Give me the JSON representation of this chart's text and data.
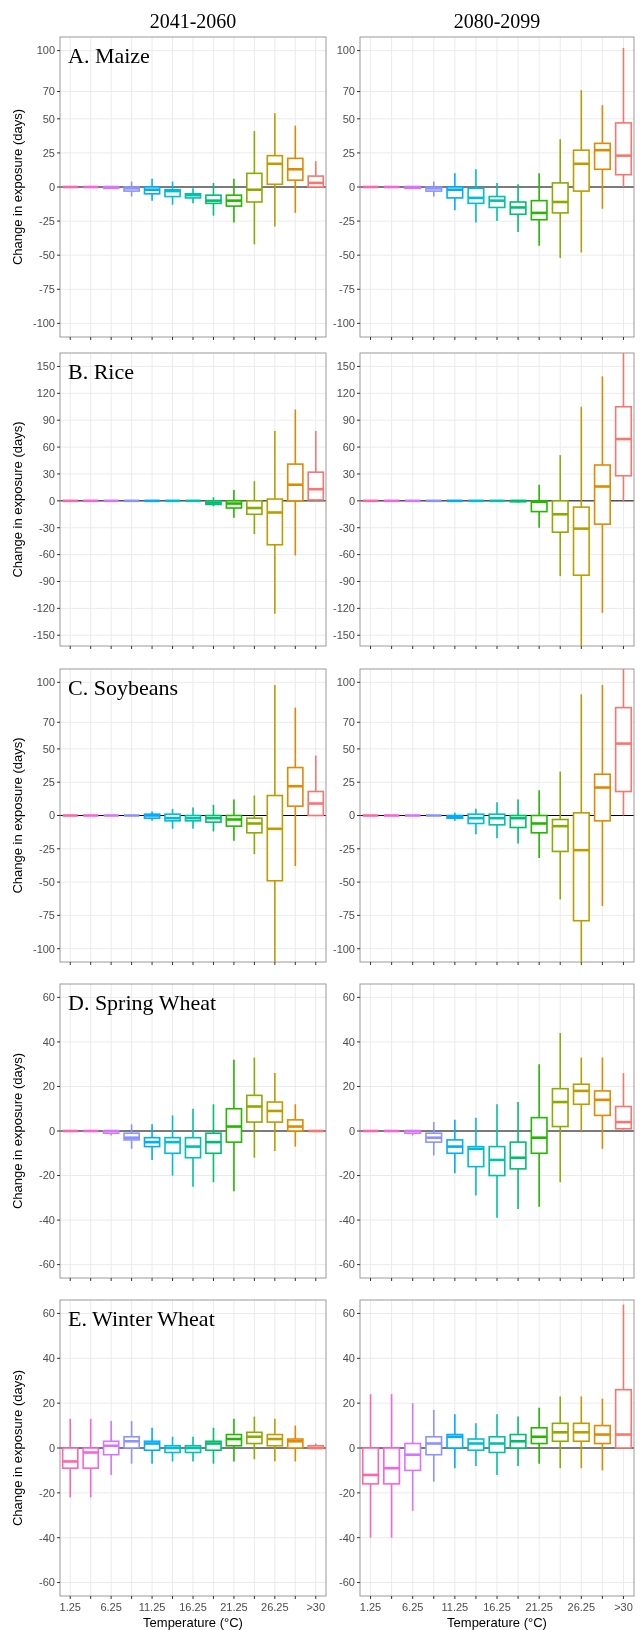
{
  "chart_data": [
    {
      "type": "box",
      "title": "2041-2060",
      "annotations": [
        "A. Maize"
      ],
      "ylabel": "Change in exposure (days)",
      "categories": [
        null,
        null,
        null,
        null,
        null,
        null,
        null,
        null,
        null,
        null,
        null,
        null,
        null
      ],
      "colors": [
        "#ff65ac",
        "#f962dd",
        "#d575fe",
        "#8b93ff",
        "#00acfc",
        "#00bbda",
        "#00c1ab",
        "#00be70",
        "#24b700",
        "#8cab00",
        "#be9c00",
        "#e18a00",
        "#f8766d"
      ],
      "ylim": [
        -110,
        110
      ],
      "yticks": [
        -100,
        -75,
        -50,
        -25,
        0,
        25,
        50,
        70,
        100
      ],
      "grid": true,
      "tick_labels": "y",
      "ref_lines": [
        {
          "axis": "y",
          "value": 0,
          "color": "#000000"
        }
      ],
      "boxes": [
        {
          "low": 0,
          "q1": 0,
          "median": 0,
          "q3": 0,
          "high": 0
        },
        {
          "low": 0,
          "q1": 0,
          "median": 0,
          "q3": 0,
          "high": 0
        },
        {
          "low": -1,
          "q1": -1,
          "median": 0,
          "q3": 0,
          "high": 0
        },
        {
          "low": -7,
          "q1": -3,
          "median": -1,
          "q3": 0,
          "high": 4
        },
        {
          "low": -10,
          "q1": -5,
          "median": -2,
          "q3": 0,
          "high": 6
        },
        {
          "low": -13,
          "q1": -7,
          "median": -3,
          "q3": -2,
          "high": 4
        },
        {
          "low": -12,
          "q1": -8,
          "median": -6,
          "q3": -5,
          "high": -1
        },
        {
          "low": -21,
          "q1": -12,
          "median": -10,
          "q3": -6,
          "high": 3
        },
        {
          "low": -26,
          "q1": -14,
          "median": -10,
          "q3": -6,
          "high": 6
        },
        {
          "low": -42,
          "q1": -11,
          "median": -2,
          "q3": 10,
          "high": 41
        },
        {
          "low": -29,
          "q1": 2,
          "median": 17,
          "q3": 23,
          "high": 54
        },
        {
          "low": -19,
          "q1": 5,
          "median": 13,
          "q3": 21,
          "high": 45
        },
        {
          "low": 0,
          "q1": 0,
          "median": 3,
          "q3": 8,
          "high": 19
        }
      ]
    },
    {
      "type": "box",
      "title": "2080-2099",
      "categories": [
        null,
        null,
        null,
        null,
        null,
        null,
        null,
        null,
        null,
        null,
        null,
        null,
        null
      ],
      "colors": [
        "#ff65ac",
        "#f962dd",
        "#d575fe",
        "#8b93ff",
        "#00acfc",
        "#00bbda",
        "#00c1ab",
        "#00be70",
        "#24b700",
        "#8cab00",
        "#be9c00",
        "#e18a00",
        "#f8766d"
      ],
      "ylim": [
        -110,
        110
      ],
      "yticks": [
        -100,
        -75,
        -50,
        -25,
        0,
        25,
        50,
        70,
        100
      ],
      "grid": true,
      "tick_labels": "y",
      "ref_lines": [
        {
          "axis": "y",
          "value": 0,
          "color": "#000000"
        }
      ],
      "boxes": [
        {
          "low": 0,
          "q1": 0,
          "median": 0,
          "q3": 0,
          "high": 0
        },
        {
          "low": 0,
          "q1": 0,
          "median": 0,
          "q3": 0,
          "high": 0
        },
        {
          "low": -1,
          "q1": -1,
          "median": 0,
          "q3": 0,
          "high": 0
        },
        {
          "low": -7,
          "q1": -3,
          "median": -1,
          "q3": 0,
          "high": 4
        },
        {
          "low": -17,
          "q1": -8,
          "median": -2,
          "q3": 0,
          "high": 10
        },
        {
          "low": -26,
          "q1": -12,
          "median": -8,
          "q3": -1,
          "high": 13
        },
        {
          "low": -25,
          "q1": -15,
          "median": -10,
          "q3": -7,
          "high": 3
        },
        {
          "low": -33,
          "q1": -20,
          "median": -15,
          "q3": -11,
          "high": 2
        },
        {
          "low": -43,
          "q1": -24,
          "median": -19,
          "q3": -10,
          "high": 10
        },
        {
          "low": -52,
          "q1": -19,
          "median": -11,
          "q3": 3,
          "high": 35
        },
        {
          "low": -48,
          "q1": -3,
          "median": 17,
          "q3": 27,
          "high": 71
        },
        {
          "low": -16,
          "q1": 13,
          "median": 27,
          "q3": 32,
          "high": 60
        },
        {
          "low": 0,
          "q1": 9,
          "median": 23,
          "q3": 47,
          "high": 102
        }
      ]
    },
    {
      "type": "box",
      "annotations": [
        "B. Rice"
      ],
      "ylabel": "Change in exposure (days)",
      "categories": [
        null,
        null,
        null,
        null,
        null,
        null,
        null,
        null,
        null,
        null,
        null,
        null,
        null
      ],
      "colors": [
        "#ff65ac",
        "#f962dd",
        "#d575fe",
        "#8b93ff",
        "#00acfc",
        "#00bbda",
        "#00c1ab",
        "#00be70",
        "#24b700",
        "#8cab00",
        "#be9c00",
        "#e18a00",
        "#f8766d"
      ],
      "ylim": [
        -162,
        165
      ],
      "yticks": [
        -150,
        -120,
        -90,
        -60,
        -30,
        0,
        30,
        60,
        90,
        120,
        150
      ],
      "grid": true,
      "tick_labels": "y",
      "ref_lines": [
        {
          "axis": "y",
          "value": 0,
          "color": "#000000"
        }
      ],
      "boxes": [
        {
          "low": 0,
          "q1": 0,
          "median": 0,
          "q3": 0,
          "high": 0
        },
        {
          "low": 0,
          "q1": 0,
          "median": 0,
          "q3": 0,
          "high": 0
        },
        {
          "low": 0,
          "q1": 0,
          "median": 0,
          "q3": 0,
          "high": 0
        },
        {
          "low": 0,
          "q1": 0,
          "median": 0,
          "q3": 0,
          "high": 0
        },
        {
          "low": 0,
          "q1": 0,
          "median": 0,
          "q3": 0,
          "high": 0
        },
        {
          "low": 0,
          "q1": 0,
          "median": 0,
          "q3": 0,
          "high": 0
        },
        {
          "low": 0,
          "q1": 0,
          "median": 0,
          "q3": 0,
          "high": 0
        },
        {
          "low": -6,
          "q1": -4,
          "median": -2,
          "q3": 0,
          "high": 4
        },
        {
          "low": -19,
          "q1": -8,
          "median": -3,
          "q3": 0,
          "high": 12
        },
        {
          "low": -37,
          "q1": -15,
          "median": -8,
          "q3": 0,
          "high": 22
        },
        {
          "low": -126,
          "q1": -49,
          "median": -13,
          "q3": 2,
          "high": 78
        },
        {
          "low": -61,
          "q1": 0,
          "median": 18,
          "q3": 41,
          "high": 102
        },
        {
          "low": 0,
          "q1": 1,
          "median": 13,
          "q3": 32,
          "high": 78
        }
      ]
    },
    {
      "type": "box",
      "categories": [
        null,
        null,
        null,
        null,
        null,
        null,
        null,
        null,
        null,
        null,
        null,
        null,
        null
      ],
      "colors": [
        "#ff65ac",
        "#f962dd",
        "#d575fe",
        "#8b93ff",
        "#00acfc",
        "#00bbda",
        "#00c1ab",
        "#00be70",
        "#24b700",
        "#8cab00",
        "#be9c00",
        "#e18a00",
        "#f8766d"
      ],
      "ylim": [
        -162,
        165
      ],
      "yticks": [
        -150,
        -120,
        -90,
        -60,
        -30,
        0,
        30,
        60,
        90,
        120,
        150
      ],
      "grid": true,
      "tick_labels": "y",
      "ref_lines": [
        {
          "axis": "y",
          "value": 0,
          "color": "#000000"
        }
      ],
      "boxes": [
        {
          "low": 0,
          "q1": 0,
          "median": 0,
          "q3": 0,
          "high": 0
        },
        {
          "low": 0,
          "q1": 0,
          "median": 0,
          "q3": 0,
          "high": 0
        },
        {
          "low": 0,
          "q1": 0,
          "median": 0,
          "q3": 0,
          "high": 0
        },
        {
          "low": 0,
          "q1": 0,
          "median": 0,
          "q3": 0,
          "high": 0
        },
        {
          "low": 0,
          "q1": 0,
          "median": 0,
          "q3": 0,
          "high": 0
        },
        {
          "low": 0,
          "q1": 0,
          "median": 0,
          "q3": 0,
          "high": 0
        },
        {
          "low": 0,
          "q1": 0,
          "median": 0,
          "q3": 0,
          "high": 0
        },
        {
          "low": -2,
          "q1": -1,
          "median": 0,
          "q3": 0,
          "high": 1
        },
        {
          "low": -30,
          "q1": -12,
          "median": -1,
          "q3": 0,
          "high": 18
        },
        {
          "low": -84,
          "q1": -35,
          "median": -15,
          "q3": 0,
          "high": 51
        },
        {
          "low": -162,
          "q1": -83,
          "median": -31,
          "q3": -7,
          "high": 105
        },
        {
          "low": -125,
          "q1": -26,
          "median": 16,
          "q3": 40,
          "high": 139
        },
        {
          "low": 0,
          "q1": 28,
          "median": 69,
          "q3": 105,
          "high": 165
        }
      ]
    },
    {
      "type": "box",
      "annotations": [
        "C. Soybeans"
      ],
      "ylabel": "Change in exposure (days)",
      "categories": [
        null,
        null,
        null,
        null,
        null,
        null,
        null,
        null,
        null,
        null,
        null,
        null,
        null
      ],
      "colors": [
        "#ff65ac",
        "#f962dd",
        "#d575fe",
        "#8b93ff",
        "#00acfc",
        "#00bbda",
        "#00c1ab",
        "#00be70",
        "#24b700",
        "#8cab00",
        "#be9c00",
        "#e18a00",
        "#f8766d"
      ],
      "ylim": [
        -110,
        110
      ],
      "yticks": [
        -100,
        -75,
        -50,
        -25,
        0,
        25,
        50,
        70,
        100
      ],
      "grid": true,
      "tick_labels": "y",
      "ref_lines": [
        {
          "axis": "y",
          "value": 0,
          "color": "#000000"
        }
      ],
      "boxes": [
        {
          "low": 0,
          "q1": 0,
          "median": 0,
          "q3": 0,
          "high": 0
        },
        {
          "low": 0,
          "q1": 0,
          "median": 0,
          "q3": 0,
          "high": 0
        },
        {
          "low": 0,
          "q1": 0,
          "median": 0,
          "q3": 0,
          "high": 0
        },
        {
          "low": 0,
          "q1": 0,
          "median": 0,
          "q3": 0,
          "high": 0
        },
        {
          "low": -4,
          "q1": -2,
          "median": 0,
          "q3": 1,
          "high": 3
        },
        {
          "low": -10,
          "q1": -4,
          "median": -2,
          "q3": 1,
          "high": 5
        },
        {
          "low": -10,
          "q1": -4,
          "median": -2,
          "q3": 0,
          "high": 6
        },
        {
          "low": -12,
          "q1": -5,
          "median": -2,
          "q3": 0,
          "high": 8
        },
        {
          "low": -19,
          "q1": -8,
          "median": -3,
          "q3": 0,
          "high": 12
        },
        {
          "low": -29,
          "q1": -13,
          "median": -6,
          "q3": -2,
          "high": 15
        },
        {
          "low": -110,
          "q1": -49,
          "median": -10,
          "q3": 15,
          "high": 98
        },
        {
          "low": -38,
          "q1": 7,
          "median": 22,
          "q3": 36,
          "high": 81
        },
        {
          "low": 0,
          "q1": 0,
          "median": 9,
          "q3": 18,
          "high": 45
        }
      ]
    },
    {
      "type": "box",
      "categories": [
        null,
        null,
        null,
        null,
        null,
        null,
        null,
        null,
        null,
        null,
        null,
        null,
        null
      ],
      "colors": [
        "#ff65ac",
        "#f962dd",
        "#d575fe",
        "#8b93ff",
        "#00acfc",
        "#00bbda",
        "#00c1ab",
        "#00be70",
        "#24b700",
        "#8cab00",
        "#be9c00",
        "#e18a00",
        "#f8766d"
      ],
      "ylim": [
        -110,
        110
      ],
      "yticks": [
        -100,
        -75,
        -50,
        -25,
        0,
        25,
        50,
        70,
        100
      ],
      "grid": true,
      "tick_labels": "y",
      "ref_lines": [
        {
          "axis": "y",
          "value": 0,
          "color": "#000000"
        }
      ],
      "boxes": [
        {
          "low": 0,
          "q1": 0,
          "median": 0,
          "q3": 0,
          "high": 0
        },
        {
          "low": 0,
          "q1": 0,
          "median": 0,
          "q3": 0,
          "high": 0
        },
        {
          "low": 0,
          "q1": 0,
          "median": 0,
          "q3": 0,
          "high": 0
        },
        {
          "low": 0,
          "q1": 0,
          "median": 0,
          "q3": 0,
          "high": 0
        },
        {
          "low": -4,
          "q1": -2,
          "median": -1,
          "q3": 0,
          "high": 2
        },
        {
          "low": -14,
          "q1": -6,
          "median": -2,
          "q3": 1,
          "high": 5
        },
        {
          "low": -17,
          "q1": -7,
          "median": -2,
          "q3": 1,
          "high": 10
        },
        {
          "low": -21,
          "q1": -9,
          "median": -2,
          "q3": 0,
          "high": 12
        },
        {
          "low": -32,
          "q1": -13,
          "median": -6,
          "q3": 0,
          "high": 19
        },
        {
          "low": -63,
          "q1": -27,
          "median": -8,
          "q3": -3,
          "high": 33
        },
        {
          "low": -110,
          "q1": -79,
          "median": -26,
          "q3": 2,
          "high": 91
        },
        {
          "low": -68,
          "q1": -4,
          "median": 21,
          "q3": 31,
          "high": 98
        },
        {
          "low": 0,
          "q1": 18,
          "median": 54,
          "q3": 81,
          "high": 110
        }
      ]
    },
    {
      "type": "box",
      "annotations": [
        "D. Spring Wheat"
      ],
      "ylabel": "Change in exposure (days)",
      "categories": [
        null,
        null,
        null,
        null,
        null,
        null,
        null,
        null,
        null,
        null,
        null,
        null,
        null
      ],
      "colors": [
        "#ff65ac",
        "#f962dd",
        "#d575fe",
        "#8b93ff",
        "#00acfc",
        "#00bbda",
        "#00c1ab",
        "#00be70",
        "#24b700",
        "#8cab00",
        "#be9c00",
        "#e18a00",
        "#f8766d"
      ],
      "ylim": [
        -66,
        66
      ],
      "yticks": [
        -60,
        -40,
        -20,
        0,
        20,
        40,
        60
      ],
      "grid": true,
      "tick_labels": "y",
      "ref_lines": [
        {
          "axis": "y",
          "value": 0,
          "color": "#000000"
        }
      ],
      "boxes": [
        {
          "low": 0,
          "q1": 0,
          "median": 0,
          "q3": 0,
          "high": 0
        },
        {
          "low": 0,
          "q1": 0,
          "median": 0,
          "q3": 0,
          "high": 0
        },
        {
          "low": -2,
          "q1": -1,
          "median": 0,
          "q3": 0,
          "high": 0
        },
        {
          "low": -8,
          "q1": -4,
          "median": -3,
          "q3": -1,
          "high": 3
        },
        {
          "low": -13,
          "q1": -7,
          "median": -5,
          "q3": -3,
          "high": 3
        },
        {
          "low": -20,
          "q1": -10,
          "median": -5,
          "q3": -3,
          "high": 7
        },
        {
          "low": -25,
          "q1": -12,
          "median": -7,
          "q3": -3,
          "high": 10
        },
        {
          "low": -23,
          "q1": -10,
          "median": -5,
          "q3": -1,
          "high": 12
        },
        {
          "low": -27,
          "q1": -5,
          "median": 2,
          "q3": 10,
          "high": 32
        },
        {
          "low": -12,
          "q1": 4,
          "median": 11,
          "q3": 16,
          "high": 33
        },
        {
          "low": -9,
          "q1": 4,
          "median": 9,
          "q3": 13,
          "high": 26
        },
        {
          "low": -7,
          "q1": 0,
          "median": 2,
          "q3": 5,
          "high": 12
        },
        {
          "low": 0,
          "q1": 0,
          "median": 0,
          "q3": 0,
          "high": 0
        }
      ]
    },
    {
      "type": "box",
      "categories": [
        null,
        null,
        null,
        null,
        null,
        null,
        null,
        null,
        null,
        null,
        null,
        null,
        null
      ],
      "colors": [
        "#ff65ac",
        "#f962dd",
        "#d575fe",
        "#8b93ff",
        "#00acfc",
        "#00bbda",
        "#00c1ab",
        "#00be70",
        "#24b700",
        "#8cab00",
        "#be9c00",
        "#e18a00",
        "#f8766d"
      ],
      "ylim": [
        -66,
        66
      ],
      "yticks": [
        -60,
        -40,
        -20,
        0,
        20,
        40,
        60
      ],
      "grid": true,
      "tick_labels": "y",
      "ref_lines": [
        {
          "axis": "y",
          "value": 0,
          "color": "#000000"
        }
      ],
      "boxes": [
        {
          "low": 0,
          "q1": 0,
          "median": 0,
          "q3": 0,
          "high": 0
        },
        {
          "low": 0,
          "q1": 0,
          "median": 0,
          "q3": 0,
          "high": 0
        },
        {
          "low": -2,
          "q1": -1,
          "median": 0,
          "q3": 0,
          "high": 0
        },
        {
          "low": -11,
          "q1": -5,
          "median": -3,
          "q3": -1,
          "high": 4
        },
        {
          "low": -19,
          "q1": -10,
          "median": -7,
          "q3": -4,
          "high": 5
        },
        {
          "low": -29,
          "q1": -16,
          "median": -8,
          "q3": -7,
          "high": 6
        },
        {
          "low": -39,
          "q1": -20,
          "median": -13,
          "q3": -7,
          "high": 12
        },
        {
          "low": -35,
          "q1": -17,
          "median": -12,
          "q3": -5,
          "high": 13
        },
        {
          "low": -34,
          "q1": -10,
          "median": -3,
          "q3": 6,
          "high": 30
        },
        {
          "low": -23,
          "q1": 2,
          "median": 13,
          "q3": 19,
          "high": 44
        },
        {
          "low": 0,
          "q1": 12,
          "median": 18,
          "q3": 21,
          "high": 33
        },
        {
          "low": -8,
          "q1": 7,
          "median": 14,
          "q3": 18,
          "high": 33
        },
        {
          "low": 0,
          "q1": 1,
          "median": 4,
          "q3": 11,
          "high": 26
        }
      ]
    },
    {
      "type": "box",
      "annotations": [
        "E. Winter Wheat"
      ],
      "ylabel": "Change in exposure (days)",
      "xlabel": "Temperature (°C)",
      "categories": [
        "1.25",
        null,
        "6.25",
        null,
        "11.25",
        null,
        "16.25",
        null,
        "21.25",
        null,
        "26.25",
        null,
        ">30"
      ],
      "colors": [
        "#ff65ac",
        "#f962dd",
        "#d575fe",
        "#8b93ff",
        "#00acfc",
        "#00bbda",
        "#00c1ab",
        "#00be70",
        "#24b700",
        "#8cab00",
        "#be9c00",
        "#e18a00",
        "#f8766d"
      ],
      "ylim": [
        -66,
        66
      ],
      "yticks": [
        -60,
        -40,
        -20,
        0,
        20,
        40,
        60
      ],
      "grid": true,
      "ref_lines": [
        {
          "axis": "y",
          "value": 0,
          "color": "#000000"
        }
      ],
      "boxes": [
        {
          "low": -22,
          "q1": -9,
          "median": -6,
          "q3": 0,
          "high": 13
        },
        {
          "low": -22,
          "q1": -9,
          "median": -2,
          "q3": 0,
          "high": 13
        },
        {
          "low": -12,
          "q1": -3,
          "median": 1,
          "q3": 3,
          "high": 12
        },
        {
          "low": -7,
          "q1": 0,
          "median": 3,
          "q3": 5,
          "high": 12
        },
        {
          "low": -7,
          "q1": -1,
          "median": 2,
          "q3": 3,
          "high": 9
        },
        {
          "low": -6,
          "q1": -2,
          "median": 0,
          "q3": 1,
          "high": 5
        },
        {
          "low": -6,
          "q1": -2,
          "median": 0,
          "q3": 1,
          "high": 5
        },
        {
          "low": -7,
          "q1": -1,
          "median": 2,
          "q3": 3,
          "high": 9
        },
        {
          "low": -6,
          "q1": 1,
          "median": 4,
          "q3": 6,
          "high": 13
        },
        {
          "low": -5,
          "q1": 2,
          "median": 5,
          "q3": 7,
          "high": 14
        },
        {
          "low": -6,
          "q1": 1,
          "median": 4,
          "q3": 6,
          "high": 13
        },
        {
          "low": -6,
          "q1": 0,
          "median": 3,
          "q3": 4,
          "high": 10
        },
        {
          "low": 0,
          "q1": 0,
          "median": 0,
          "q3": 1,
          "high": 2
        }
      ]
    },
    {
      "type": "box",
      "xlabel": "Temperature (°C)",
      "categories": [
        "1.25",
        null,
        "6.25",
        null,
        "11.25",
        null,
        "16.25",
        null,
        "21.25",
        null,
        "26.25",
        null,
        ">30"
      ],
      "colors": [
        "#ff65ac",
        "#f962dd",
        "#d575fe",
        "#8b93ff",
        "#00acfc",
        "#00bbda",
        "#00c1ab",
        "#00be70",
        "#24b700",
        "#8cab00",
        "#be9c00",
        "#e18a00",
        "#f8766d"
      ],
      "ylim": [
        -66,
        66
      ],
      "yticks": [
        -60,
        -40,
        -20,
        0,
        20,
        40,
        60
      ],
      "grid": true,
      "ref_lines": [
        {
          "axis": "y",
          "value": 0,
          "color": "#000000"
        }
      ],
      "boxes": [
        {
          "low": -40,
          "q1": -16,
          "median": -12,
          "q3": 0,
          "high": 24
        },
        {
          "low": -40,
          "q1": -16,
          "median": -9,
          "q3": 0,
          "high": 24
        },
        {
          "low": -28,
          "q1": -10,
          "median": -3,
          "q3": 2,
          "high": 20
        },
        {
          "low": -15,
          "q1": -3,
          "median": 2,
          "q3": 5,
          "high": 17
        },
        {
          "low": -9,
          "q1": 0,
          "median": 5,
          "q3": 6,
          "high": 15
        },
        {
          "low": -8,
          "q1": -1,
          "median": 2,
          "q3": 4,
          "high": 11
        },
        {
          "low": -12,
          "q1": -2,
          "median": 2,
          "q3": 5,
          "high": 15
        },
        {
          "low": -8,
          "q1": 0,
          "median": 3,
          "q3": 6,
          "high": 14
        },
        {
          "low": -7,
          "q1": 2,
          "median": 5,
          "q3": 9,
          "high": 18
        },
        {
          "low": -9,
          "q1": 3,
          "median": 7,
          "q3": 11,
          "high": 23
        },
        {
          "low": -9,
          "q1": 3,
          "median": 7,
          "q3": 11,
          "high": 23
        },
        {
          "low": -10,
          "q1": 2,
          "median": 6,
          "q3": 10,
          "high": 22
        },
        {
          "low": 0,
          "q1": 0,
          "median": 6,
          "q3": 26,
          "high": 64
        }
      ]
    }
  ]
}
